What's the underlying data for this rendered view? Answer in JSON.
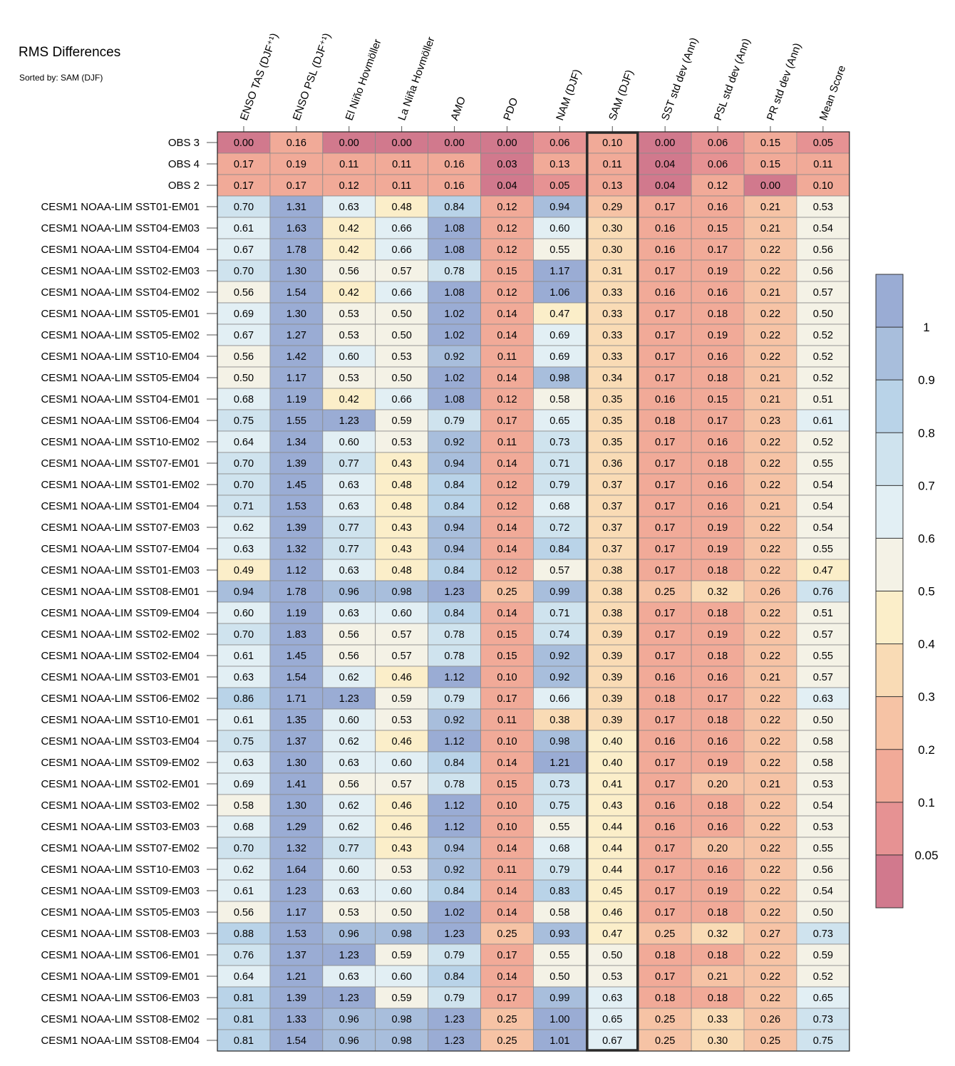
{
  "chart_data": {
    "type": "heatmap",
    "title": "RMS Differences",
    "subtitle": "Sorted by: SAM (DJF)",
    "highlighted_column": "SAM (DJF)",
    "columns": [
      "ENSO TAS (DJF⁺¹)",
      "ENSO PSL (DJF⁺¹)",
      "El Niño Hovmöller",
      "La Niña Hovmöller",
      "AMO",
      "PDO",
      "NAM (DJF)",
      "SAM (DJF)",
      "SST std dev (Ann)",
      "PSL std dev (Ann)",
      "PR std dev (Ann)",
      "Mean Score"
    ],
    "rows": [
      {
        "label": "OBS 3",
        "values": [
          "0.00",
          "0.16",
          "0.00",
          "0.00",
          "0.00",
          "0.00",
          "0.06",
          "0.10",
          "0.00",
          "0.06",
          "0.15",
          "0.05"
        ]
      },
      {
        "label": "OBS 4",
        "values": [
          "0.17",
          "0.19",
          "0.11",
          "0.11",
          "0.16",
          "0.03",
          "0.13",
          "0.11",
          "0.04",
          "0.06",
          "0.15",
          "0.11"
        ]
      },
      {
        "label": "OBS 2",
        "values": [
          "0.17",
          "0.17",
          "0.12",
          "0.11",
          "0.16",
          "0.04",
          "0.05",
          "0.13",
          "0.04",
          "0.12",
          "0.00",
          "0.10"
        ]
      },
      {
        "label": "CESM1 NOAA-LIM SST01-EM01",
        "values": [
          "0.70",
          "1.31",
          "0.63",
          "0.48",
          "0.84",
          "0.12",
          "0.94",
          "0.29",
          "0.17",
          "0.16",
          "0.21",
          "0.53"
        ]
      },
      {
        "label": "CESM1 NOAA-LIM SST04-EM03",
        "values": [
          "0.61",
          "1.63",
          "0.42",
          "0.66",
          "1.08",
          "0.12",
          "0.60",
          "0.30",
          "0.16",
          "0.15",
          "0.21",
          "0.54"
        ]
      },
      {
        "label": "CESM1 NOAA-LIM SST04-EM04",
        "values": [
          "0.67",
          "1.78",
          "0.42",
          "0.66",
          "1.08",
          "0.12",
          "0.55",
          "0.30",
          "0.16",
          "0.17",
          "0.22",
          "0.56"
        ]
      },
      {
        "label": "CESM1 NOAA-LIM SST02-EM03",
        "values": [
          "0.70",
          "1.30",
          "0.56",
          "0.57",
          "0.78",
          "0.15",
          "1.17",
          "0.31",
          "0.17",
          "0.19",
          "0.22",
          "0.56"
        ]
      },
      {
        "label": "CESM1 NOAA-LIM SST04-EM02",
        "values": [
          "0.56",
          "1.54",
          "0.42",
          "0.66",
          "1.08",
          "0.12",
          "1.06",
          "0.33",
          "0.16",
          "0.16",
          "0.21",
          "0.57"
        ]
      },
      {
        "label": "CESM1 NOAA-LIM SST05-EM01",
        "values": [
          "0.69",
          "1.30",
          "0.53",
          "0.50",
          "1.02",
          "0.14",
          "0.47",
          "0.33",
          "0.17",
          "0.18",
          "0.22",
          "0.50"
        ]
      },
      {
        "label": "CESM1 NOAA-LIM SST05-EM02",
        "values": [
          "0.67",
          "1.27",
          "0.53",
          "0.50",
          "1.02",
          "0.14",
          "0.69",
          "0.33",
          "0.17",
          "0.19",
          "0.22",
          "0.52"
        ]
      },
      {
        "label": "CESM1 NOAA-LIM SST10-EM04",
        "values": [
          "0.56",
          "1.42",
          "0.60",
          "0.53",
          "0.92",
          "0.11",
          "0.69",
          "0.33",
          "0.17",
          "0.16",
          "0.22",
          "0.52"
        ]
      },
      {
        "label": "CESM1 NOAA-LIM SST05-EM04",
        "values": [
          "0.50",
          "1.17",
          "0.53",
          "0.50",
          "1.02",
          "0.14",
          "0.98",
          "0.34",
          "0.17",
          "0.18",
          "0.21",
          "0.52"
        ]
      },
      {
        "label": "CESM1 NOAA-LIM SST04-EM01",
        "values": [
          "0.68",
          "1.19",
          "0.42",
          "0.66",
          "1.08",
          "0.12",
          "0.58",
          "0.35",
          "0.16",
          "0.15",
          "0.21",
          "0.51"
        ]
      },
      {
        "label": "CESM1 NOAA-LIM SST06-EM04",
        "values": [
          "0.75",
          "1.55",
          "1.23",
          "0.59",
          "0.79",
          "0.17",
          "0.65",
          "0.35",
          "0.18",
          "0.17",
          "0.23",
          "0.61"
        ]
      },
      {
        "label": "CESM1 NOAA-LIM SST10-EM02",
        "values": [
          "0.64",
          "1.34",
          "0.60",
          "0.53",
          "0.92",
          "0.11",
          "0.73",
          "0.35",
          "0.17",
          "0.16",
          "0.22",
          "0.52"
        ]
      },
      {
        "label": "CESM1 NOAA-LIM SST07-EM01",
        "values": [
          "0.70",
          "1.39",
          "0.77",
          "0.43",
          "0.94",
          "0.14",
          "0.71",
          "0.36",
          "0.17",
          "0.18",
          "0.22",
          "0.55"
        ]
      },
      {
        "label": "CESM1 NOAA-LIM SST01-EM02",
        "values": [
          "0.70",
          "1.45",
          "0.63",
          "0.48",
          "0.84",
          "0.12",
          "0.79",
          "0.37",
          "0.17",
          "0.16",
          "0.22",
          "0.54"
        ]
      },
      {
        "label": "CESM1 NOAA-LIM SST01-EM04",
        "values": [
          "0.71",
          "1.53",
          "0.63",
          "0.48",
          "0.84",
          "0.12",
          "0.68",
          "0.37",
          "0.17",
          "0.16",
          "0.21",
          "0.54"
        ]
      },
      {
        "label": "CESM1 NOAA-LIM SST07-EM03",
        "values": [
          "0.62",
          "1.39",
          "0.77",
          "0.43",
          "0.94",
          "0.14",
          "0.72",
          "0.37",
          "0.17",
          "0.19",
          "0.22",
          "0.54"
        ]
      },
      {
        "label": "CESM1 NOAA-LIM SST07-EM04",
        "values": [
          "0.63",
          "1.32",
          "0.77",
          "0.43",
          "0.94",
          "0.14",
          "0.84",
          "0.37",
          "0.17",
          "0.19",
          "0.22",
          "0.55"
        ]
      },
      {
        "label": "CESM1 NOAA-LIM SST01-EM03",
        "values": [
          "0.49",
          "1.12",
          "0.63",
          "0.48",
          "0.84",
          "0.12",
          "0.57",
          "0.38",
          "0.17",
          "0.18",
          "0.22",
          "0.47"
        ]
      },
      {
        "label": "CESM1 NOAA-LIM SST08-EM01",
        "values": [
          "0.94",
          "1.78",
          "0.96",
          "0.98",
          "1.23",
          "0.25",
          "0.99",
          "0.38",
          "0.25",
          "0.32",
          "0.26",
          "0.76"
        ]
      },
      {
        "label": "CESM1 NOAA-LIM SST09-EM04",
        "values": [
          "0.60",
          "1.19",
          "0.63",
          "0.60",
          "0.84",
          "0.14",
          "0.71",
          "0.38",
          "0.17",
          "0.18",
          "0.22",
          "0.51"
        ]
      },
      {
        "label": "CESM1 NOAA-LIM SST02-EM02",
        "values": [
          "0.70",
          "1.83",
          "0.56",
          "0.57",
          "0.78",
          "0.15",
          "0.74",
          "0.39",
          "0.17",
          "0.19",
          "0.22",
          "0.57"
        ]
      },
      {
        "label": "CESM1 NOAA-LIM SST02-EM04",
        "values": [
          "0.61",
          "1.45",
          "0.56",
          "0.57",
          "0.78",
          "0.15",
          "0.92",
          "0.39",
          "0.17",
          "0.18",
          "0.22",
          "0.55"
        ]
      },
      {
        "label": "CESM1 NOAA-LIM SST03-EM01",
        "values": [
          "0.63",
          "1.54",
          "0.62",
          "0.46",
          "1.12",
          "0.10",
          "0.92",
          "0.39",
          "0.16",
          "0.16",
          "0.21",
          "0.57"
        ]
      },
      {
        "label": "CESM1 NOAA-LIM SST06-EM02",
        "values": [
          "0.86",
          "1.71",
          "1.23",
          "0.59",
          "0.79",
          "0.17",
          "0.66",
          "0.39",
          "0.18",
          "0.17",
          "0.22",
          "0.63"
        ]
      },
      {
        "label": "CESM1 NOAA-LIM SST10-EM01",
        "values": [
          "0.61",
          "1.35",
          "0.60",
          "0.53",
          "0.92",
          "0.11",
          "0.38",
          "0.39",
          "0.17",
          "0.18",
          "0.22",
          "0.50"
        ]
      },
      {
        "label": "CESM1 NOAA-LIM SST03-EM04",
        "values": [
          "0.75",
          "1.37",
          "0.62",
          "0.46",
          "1.12",
          "0.10",
          "0.98",
          "0.40",
          "0.16",
          "0.16",
          "0.22",
          "0.58"
        ]
      },
      {
        "label": "CESM1 NOAA-LIM SST09-EM02",
        "values": [
          "0.63",
          "1.30",
          "0.63",
          "0.60",
          "0.84",
          "0.14",
          "1.21",
          "0.40",
          "0.17",
          "0.19",
          "0.22",
          "0.58"
        ]
      },
      {
        "label": "CESM1 NOAA-LIM SST02-EM01",
        "values": [
          "0.69",
          "1.41",
          "0.56",
          "0.57",
          "0.78",
          "0.15",
          "0.73",
          "0.41",
          "0.17",
          "0.20",
          "0.21",
          "0.53"
        ]
      },
      {
        "label": "CESM1 NOAA-LIM SST03-EM02",
        "values": [
          "0.58",
          "1.30",
          "0.62",
          "0.46",
          "1.12",
          "0.10",
          "0.75",
          "0.43",
          "0.16",
          "0.18",
          "0.22",
          "0.54"
        ]
      },
      {
        "label": "CESM1 NOAA-LIM SST03-EM03",
        "values": [
          "0.68",
          "1.29",
          "0.62",
          "0.46",
          "1.12",
          "0.10",
          "0.55",
          "0.44",
          "0.16",
          "0.16",
          "0.22",
          "0.53"
        ]
      },
      {
        "label": "CESM1 NOAA-LIM SST07-EM02",
        "values": [
          "0.70",
          "1.32",
          "0.77",
          "0.43",
          "0.94",
          "0.14",
          "0.68",
          "0.44",
          "0.17",
          "0.20",
          "0.22",
          "0.55"
        ]
      },
      {
        "label": "CESM1 NOAA-LIM SST10-EM03",
        "values": [
          "0.62",
          "1.64",
          "0.60",
          "0.53",
          "0.92",
          "0.11",
          "0.79",
          "0.44",
          "0.17",
          "0.16",
          "0.22",
          "0.56"
        ]
      },
      {
        "label": "CESM1 NOAA-LIM SST09-EM03",
        "values": [
          "0.61",
          "1.23",
          "0.63",
          "0.60",
          "0.84",
          "0.14",
          "0.83",
          "0.45",
          "0.17",
          "0.19",
          "0.22",
          "0.54"
        ]
      },
      {
        "label": "CESM1 NOAA-LIM SST05-EM03",
        "values": [
          "0.56",
          "1.17",
          "0.53",
          "0.50",
          "1.02",
          "0.14",
          "0.58",
          "0.46",
          "0.17",
          "0.18",
          "0.22",
          "0.50"
        ]
      },
      {
        "label": "CESM1 NOAA-LIM SST08-EM03",
        "values": [
          "0.88",
          "1.53",
          "0.96",
          "0.98",
          "1.23",
          "0.25",
          "0.93",
          "0.47",
          "0.25",
          "0.32",
          "0.27",
          "0.73"
        ]
      },
      {
        "label": "CESM1 NOAA-LIM SST06-EM01",
        "values": [
          "0.76",
          "1.37",
          "1.23",
          "0.59",
          "0.79",
          "0.17",
          "0.55",
          "0.50",
          "0.18",
          "0.18",
          "0.22",
          "0.59"
        ]
      },
      {
        "label": "CESM1 NOAA-LIM SST09-EM01",
        "values": [
          "0.64",
          "1.21",
          "0.63",
          "0.60",
          "0.84",
          "0.14",
          "0.50",
          "0.53",
          "0.17",
          "0.21",
          "0.22",
          "0.52"
        ]
      },
      {
        "label": "CESM1 NOAA-LIM SST06-EM03",
        "values": [
          "0.81",
          "1.39",
          "1.23",
          "0.59",
          "0.79",
          "0.17",
          "0.99",
          "0.63",
          "0.18",
          "0.18",
          "0.22",
          "0.65"
        ]
      },
      {
        "label": "CESM1 NOAA-LIM SST08-EM02",
        "values": [
          "0.81",
          "1.33",
          "0.96",
          "0.98",
          "1.23",
          "0.25",
          "1.00",
          "0.65",
          "0.25",
          "0.33",
          "0.26",
          "0.73"
        ]
      },
      {
        "label": "CESM1 NOAA-LIM SST08-EM04",
        "values": [
          "0.81",
          "1.54",
          "0.96",
          "0.98",
          "1.23",
          "0.25",
          "1.01",
          "0.67",
          "0.25",
          "0.30",
          "0.25",
          "0.75"
        ]
      }
    ],
    "colorbar": {
      "levels": [
        0.05,
        0.1,
        0.2,
        0.3,
        0.4,
        0.5,
        0.6,
        0.7,
        0.8,
        0.9,
        1
      ],
      "tick_labels": [
        "0.05",
        "0.1",
        "0.2",
        "0.3",
        "0.4",
        "0.5",
        "0.6",
        "0.7",
        "0.8",
        "0.9",
        "1"
      ],
      "colors": [
        "#d1798d",
        "#e69293",
        "#f1aa98",
        "#f6c3a5",
        "#f9dbb5",
        "#fbeec9",
        "#f4f2e6",
        "#e2eff4",
        "#cfe3ee",
        "#b9d3e8",
        "#a8bedc",
        "#9aacd4"
      ]
    }
  }
}
